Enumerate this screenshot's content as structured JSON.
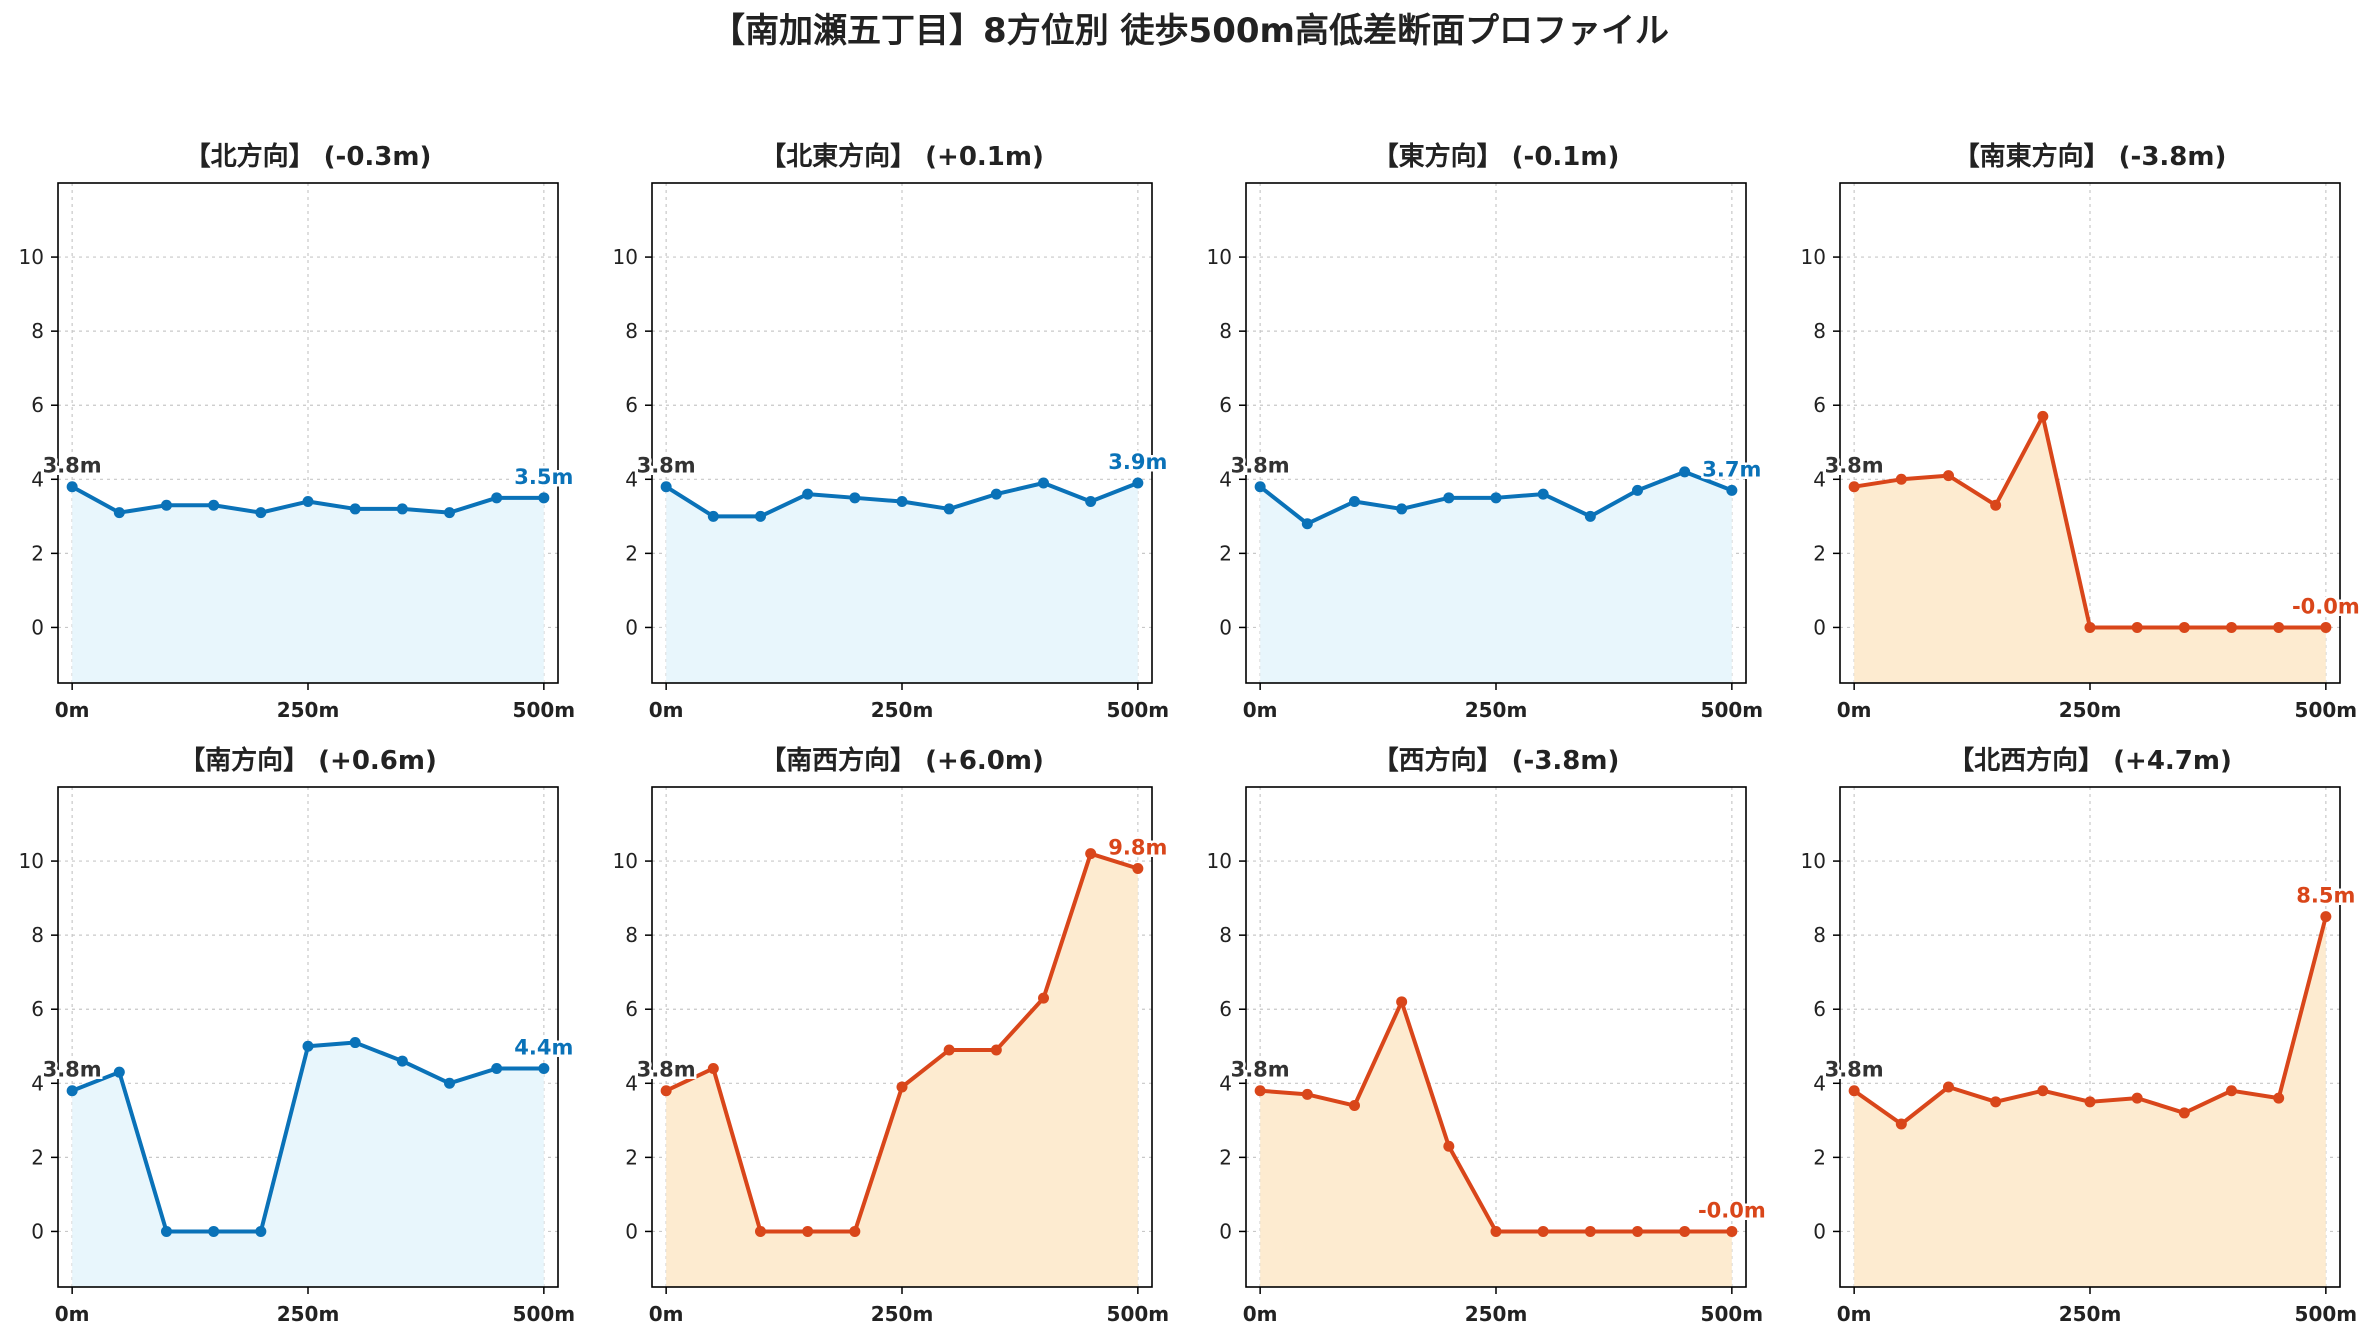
{
  "figure": {
    "title": "【南加瀬五丁目】8方位別 徒歩500m高低差断面プロファイル"
  },
  "colors": {
    "down": "#1f78b4",
    "down_line": "#0a72b8",
    "down_fill": "#e8f6fc",
    "up_line": "#d9461a",
    "up_fill": "#fdebd0",
    "start_label": "#333333",
    "grid": "#c8c8c8"
  },
  "chart_data": [
    {
      "type": "area",
      "title": "【北方向】 (-0.3m)",
      "trend": "down",
      "x": [
        0,
        50,
        100,
        150,
        200,
        250,
        300,
        350,
        400,
        450,
        500
      ],
      "values": [
        3.8,
        3.1,
        3.3,
        3.3,
        3.1,
        3.4,
        3.2,
        3.2,
        3.1,
        3.5,
        3.5
      ],
      "start_label": "3.8m",
      "end_label": "3.5m",
      "xticks": [
        {
          "v": 0,
          "label": "0m"
        },
        {
          "v": 250,
          "label": "250m"
        },
        {
          "v": 500,
          "label": "500m"
        }
      ],
      "yticks": [
        0,
        2,
        4,
        6,
        8,
        10
      ],
      "xlim": [
        -15,
        515
      ],
      "ylim": [
        -1.5,
        12
      ],
      "grid": true
    },
    {
      "type": "area",
      "title": "【北東方向】 (+0.1m)",
      "trend": "down",
      "x": [
        0,
        50,
        100,
        150,
        200,
        250,
        300,
        350,
        400,
        450,
        500
      ],
      "values": [
        3.8,
        3.0,
        3.0,
        3.6,
        3.5,
        3.4,
        3.2,
        3.6,
        3.9,
        3.4,
        3.9
      ],
      "start_label": "3.8m",
      "end_label": "3.9m",
      "xticks": [
        {
          "v": 0,
          "label": "0m"
        },
        {
          "v": 250,
          "label": "250m"
        },
        {
          "v": 500,
          "label": "500m"
        }
      ],
      "yticks": [
        0,
        2,
        4,
        6,
        8,
        10
      ],
      "xlim": [
        -15,
        515
      ],
      "ylim": [
        -1.5,
        12
      ],
      "grid": true
    },
    {
      "type": "area",
      "title": "【東方向】 (-0.1m)",
      "trend": "down",
      "x": [
        0,
        50,
        100,
        150,
        200,
        250,
        300,
        350,
        400,
        450,
        500
      ],
      "values": [
        3.8,
        2.8,
        3.4,
        3.2,
        3.5,
        3.5,
        3.6,
        3.0,
        3.7,
        4.2,
        3.7
      ],
      "start_label": "3.8m",
      "end_label": "3.7m",
      "xticks": [
        {
          "v": 0,
          "label": "0m"
        },
        {
          "v": 250,
          "label": "250m"
        },
        {
          "v": 500,
          "label": "500m"
        }
      ],
      "yticks": [
        0,
        2,
        4,
        6,
        8,
        10
      ],
      "xlim": [
        -15,
        515
      ],
      "ylim": [
        -1.5,
        12
      ],
      "grid": true
    },
    {
      "type": "area",
      "title": "【南東方向】 (-3.8m)",
      "trend": "up",
      "x": [
        0,
        50,
        100,
        150,
        200,
        250,
        300,
        350,
        400,
        450,
        500
      ],
      "values": [
        3.8,
        4.0,
        4.1,
        3.3,
        5.7,
        0.0,
        0.0,
        0.0,
        0.0,
        0.0,
        0.0
      ],
      "start_label": "3.8m",
      "end_label": "-0.0m",
      "xticks": [
        {
          "v": 0,
          "label": "0m"
        },
        {
          "v": 250,
          "label": "250m"
        },
        {
          "v": 500,
          "label": "500m"
        }
      ],
      "yticks": [
        0,
        2,
        4,
        6,
        8,
        10
      ],
      "xlim": [
        -15,
        515
      ],
      "ylim": [
        -1.5,
        12
      ],
      "grid": true
    },
    {
      "type": "area",
      "title": "【南方向】 (+0.6m)",
      "trend": "down",
      "x": [
        0,
        50,
        100,
        150,
        200,
        250,
        300,
        350,
        400,
        450,
        500
      ],
      "values": [
        3.8,
        4.3,
        0.0,
        0.0,
        0.0,
        5.0,
        5.1,
        4.6,
        4.0,
        4.4,
        4.4
      ],
      "start_label": "3.8m",
      "end_label": "4.4m",
      "xticks": [
        {
          "v": 0,
          "label": "0m"
        },
        {
          "v": 250,
          "label": "250m"
        },
        {
          "v": 500,
          "label": "500m"
        }
      ],
      "yticks": [
        0,
        2,
        4,
        6,
        8,
        10
      ],
      "xlim": [
        -15,
        515
      ],
      "ylim": [
        -1.5,
        12
      ],
      "grid": true
    },
    {
      "type": "area",
      "title": "【南西方向】 (+6.0m)",
      "trend": "up",
      "x": [
        0,
        50,
        100,
        150,
        200,
        250,
        300,
        350,
        400,
        450,
        500
      ],
      "values": [
        3.8,
        4.4,
        0.0,
        0.0,
        0.0,
        3.9,
        4.9,
        4.9,
        6.3,
        10.2,
        9.8
      ],
      "start_label": "3.8m",
      "end_label": "9.8m",
      "xticks": [
        {
          "v": 0,
          "label": "0m"
        },
        {
          "v": 250,
          "label": "250m"
        },
        {
          "v": 500,
          "label": "500m"
        }
      ],
      "yticks": [
        0,
        2,
        4,
        6,
        8,
        10
      ],
      "xlim": [
        -15,
        515
      ],
      "ylim": [
        -1.5,
        12
      ],
      "grid": true
    },
    {
      "type": "area",
      "title": "【西方向】 (-3.8m)",
      "trend": "up",
      "x": [
        0,
        50,
        100,
        150,
        200,
        250,
        300,
        350,
        400,
        450,
        500
      ],
      "values": [
        3.8,
        3.7,
        3.4,
        6.2,
        2.3,
        0.0,
        0.0,
        0.0,
        0.0,
        0.0,
        0.0
      ],
      "start_label": "3.8m",
      "end_label": "-0.0m",
      "xticks": [
        {
          "v": 0,
          "label": "0m"
        },
        {
          "v": 250,
          "label": "250m"
        },
        {
          "v": 500,
          "label": "500m"
        }
      ],
      "yticks": [
        0,
        2,
        4,
        6,
        8,
        10
      ],
      "xlim": [
        -15,
        515
      ],
      "ylim": [
        -1.5,
        12
      ],
      "grid": true
    },
    {
      "type": "area",
      "title": "【北西方向】 (+4.7m)",
      "trend": "up",
      "x": [
        0,
        50,
        100,
        150,
        200,
        250,
        300,
        350,
        400,
        450,
        500
      ],
      "values": [
        3.8,
        2.9,
        3.9,
        3.5,
        3.8,
        3.5,
        3.6,
        3.2,
        3.8,
        3.6,
        8.5
      ],
      "start_label": "3.8m",
      "end_label": "8.5m",
      "xticks": [
        {
          "v": 0,
          "label": "0m"
        },
        {
          "v": 250,
          "label": "250m"
        },
        {
          "v": 500,
          "label": "500m"
        }
      ],
      "yticks": [
        0,
        2,
        4,
        6,
        8,
        10
      ],
      "xlim": [
        -15,
        515
      ],
      "ylim": [
        -1.5,
        12
      ],
      "grid": true
    }
  ]
}
